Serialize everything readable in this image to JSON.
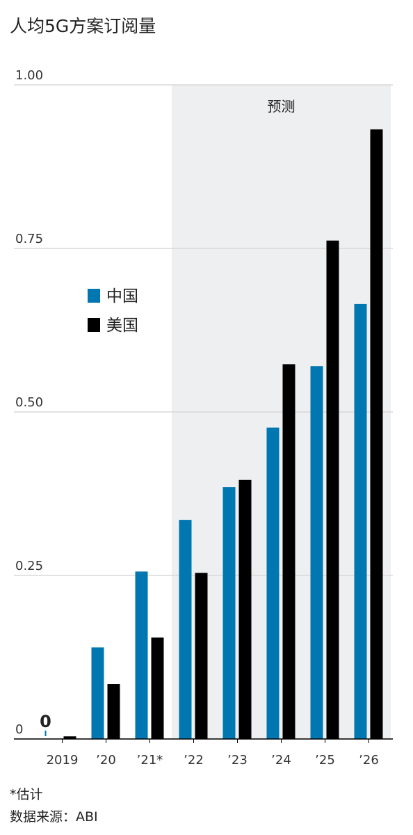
{
  "chart_data": {
    "type": "bar",
    "title": "人均5G方案订阅量",
    "categories": [
      "2019",
      "’20",
      "’21*",
      "’22",
      "’23",
      "’24",
      "’25",
      "’26"
    ],
    "series": [
      {
        "name": "中国",
        "color": "#0077b0",
        "values": [
          0,
          0.14,
          0.256,
          0.335,
          0.385,
          0.476,
          0.57,
          0.665
        ],
        "value_labels": [
          "0",
          null,
          null,
          null,
          null,
          null,
          null,
          null
        ]
      },
      {
        "name": "美国",
        "color": "#000000",
        "values": [
          0.004,
          0.084,
          0.155,
          0.254,
          0.396,
          0.573,
          0.762,
          0.932
        ]
      }
    ],
    "ylim": [
      0,
      1
    ],
    "yticks": [
      0,
      0.25,
      {
        "value": 0.5,
        "label": "0.50"
      },
      0.75,
      {
        "value": 1,
        "label": "1.00"
      }
    ],
    "grid": true,
    "forecast": {
      "label": "预测",
      "start_index": 3
    },
    "notes": [
      "*估计",
      "数据来源：ABI"
    ]
  }
}
